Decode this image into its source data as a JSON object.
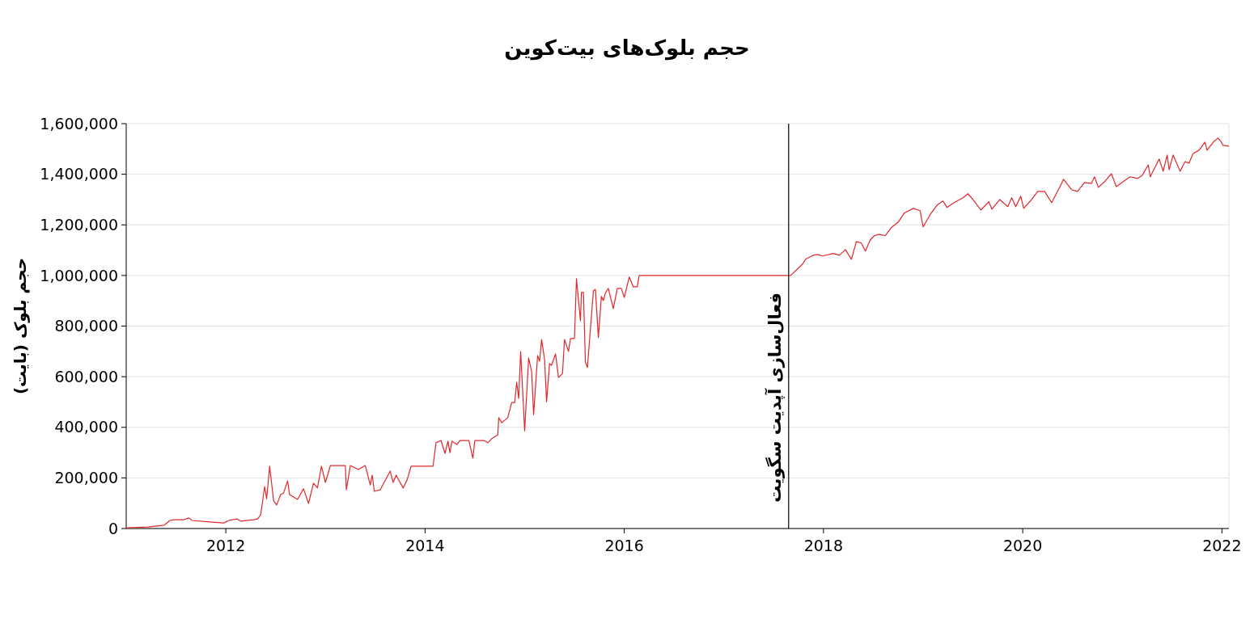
{
  "chart_data": {
    "type": "line",
    "title": "حجم بلوک‌های بیت‌کوین",
    "ylabel": "حجم بلوک (بایت)",
    "xlim": [
      2011,
      2022.07
    ],
    "xticks": [
      2012,
      2014,
      2016,
      2018,
      2020,
      2022
    ],
    "ylim": [
      0,
      1600000
    ],
    "yticks": [
      {
        "value": 0,
        "label": "0"
      },
      {
        "value": 200000,
        "label": "200,000"
      },
      {
        "value": 400000,
        "label": "400,000"
      },
      {
        "value": 600000,
        "label": "600,000"
      },
      {
        "value": 800000,
        "label": "800,000"
      },
      {
        "value": 1000000,
        "label": "1,000,000"
      },
      {
        "value": 1200000,
        "label": "1,200,000"
      },
      {
        "value": 1400000,
        "label": "1,400,000"
      },
      {
        "value": 1600000,
        "label": "1,600,000"
      }
    ],
    "grid": "y",
    "marker": "none",
    "line_style": "solid",
    "ref_lines": [
      {
        "axis": "x",
        "value": 2017.65,
        "label": "فعال‌سازی آپدیت سگویت",
        "color": "#000000"
      }
    ],
    "series": [
      {
        "color": "#e0282c",
        "x": [
          2011.0,
          2011.22,
          2011.38,
          2011.44,
          2011.48,
          2011.58,
          2011.63,
          2011.66,
          2011.84,
          2011.98,
          2012.03,
          2012.11,
          2012.15,
          2012.28,
          2012.32,
          2012.35,
          2012.39,
          2012.41,
          2012.44,
          2012.48,
          2012.51,
          2012.55,
          2012.58,
          2012.62,
          2012.64,
          2012.72,
          2012.78,
          2012.83,
          2012.88,
          2012.92,
          2012.96,
          2013.0,
          2013.05,
          2013.2,
          2013.21,
          2013.25,
          2013.33,
          2013.4,
          2013.45,
          2013.47,
          2013.49,
          2013.55,
          2013.65,
          2013.68,
          2013.71,
          2013.78,
          2013.82,
          2013.86,
          2014.08,
          2014.11,
          2014.16,
          2014.2,
          2014.23,
          2014.25,
          2014.27,
          2014.32,
          2014.35,
          2014.44,
          2014.48,
          2014.5,
          2014.59,
          2014.63,
          2014.67,
          2014.73,
          2014.74,
          2014.77,
          2014.83,
          2014.87,
          2014.9,
          2014.92,
          2014.94,
          2014.96,
          2015.0,
          2015.04,
          2015.07,
          2015.09,
          2015.13,
          2015.15,
          2015.17,
          2015.2,
          2015.22,
          2015.25,
          2015.27,
          2015.31,
          2015.34,
          2015.38,
          2015.4,
          2015.44,
          2015.46,
          2015.5,
          2015.52,
          2015.56,
          2015.57,
          2015.59,
          2015.61,
          2015.63,
          2015.69,
          2015.71,
          2015.74,
          2015.77,
          2015.79,
          2015.81,
          2015.84,
          2015.89,
          2015.93,
          2015.97,
          2016.0,
          2016.05,
          2016.09,
          2016.13,
          2016.15,
          2017.67,
          2017.79,
          2017.82,
          2017.9,
          2017.94,
          2017.99,
          2018.1,
          2018.16,
          2018.22,
          2018.28,
          2018.33,
          2018.38,
          2018.42,
          2018.47,
          2018.51,
          2018.56,
          2018.62,
          2018.68,
          2018.75,
          2018.81,
          2018.9,
          2018.97,
          2019.0,
          2019.07,
          2019.14,
          2019.2,
          2019.24,
          2019.31,
          2019.4,
          2019.45,
          2019.5,
          2019.58,
          2019.66,
          2019.69,
          2019.77,
          2019.85,
          2019.89,
          2019.93,
          2019.98,
          2020.01,
          2020.09,
          2020.15,
          2020.22,
          2020.29,
          2020.37,
          2020.41,
          2020.49,
          2020.55,
          2020.62,
          2020.69,
          2020.72,
          2020.76,
          2020.82,
          2020.89,
          2020.94,
          2021.02,
          2021.08,
          2021.15,
          2021.2,
          2021.26,
          2021.28,
          2021.37,
          2021.41,
          2021.45,
          2021.47,
          2021.51,
          2021.58,
          2021.63,
          2021.67,
          2021.71,
          2021.77,
          2021.83,
          2021.85,
          2021.92,
          2021.96,
          2021.99,
          2022.01,
          2022.07
        ],
        "values": [
          3000,
          6000,
          13000,
          32000,
          35000,
          35000,
          42000,
          32000,
          26000,
          22000,
          32000,
          38000,
          29000,
          35000,
          38000,
          54000,
          166000,
          118000,
          246000,
          109000,
          93000,
          134000,
          140000,
          188000,
          134000,
          115000,
          157000,
          99000,
          179000,
          160000,
          246000,
          182000,
          249000,
          249000,
          153000,
          249000,
          233000,
          249000,
          172000,
          211000,
          147000,
          153000,
          227000,
          182000,
          211000,
          160000,
          192000,
          246000,
          246000,
          339000,
          348000,
          297000,
          345000,
          300000,
          345000,
          332000,
          348000,
          348000,
          278000,
          348000,
          348000,
          339000,
          355000,
          370000,
          438000,
          418000,
          438000,
          498000,
          498000,
          578000,
          514000,
          700000,
          386000,
          674000,
          620000,
          450000,
          684000,
          661000,
          747000,
          668000,
          501000,
          652000,
          645000,
          690000,
          597000,
          613000,
          747000,
          700000,
          751000,
          751000,
          987000,
          821000,
          933000,
          933000,
          658000,
          636000,
          939000,
          945000,
          754000,
          917000,
          901000,
          930000,
          949000,
          869000,
          949000,
          949000,
          913000,
          994000,
          955000,
          955000,
          1000000,
          1000000,
          1045000,
          1064000,
          1080000,
          1083000,
          1077000,
          1087000,
          1080000,
          1102000,
          1064000,
          1134000,
          1128000,
          1096000,
          1141000,
          1157000,
          1163000,
          1157000,
          1189000,
          1211000,
          1246000,
          1265000,
          1256000,
          1192000,
          1240000,
          1278000,
          1294000,
          1269000,
          1288000,
          1307000,
          1323000,
          1300000,
          1259000,
          1291000,
          1262000,
          1300000,
          1272000,
          1307000,
          1272000,
          1313000,
          1265000,
          1300000,
          1332000,
          1332000,
          1288000,
          1348000,
          1380000,
          1339000,
          1332000,
          1367000,
          1364000,
          1390000,
          1348000,
          1370000,
          1402000,
          1351000,
          1374000,
          1390000,
          1383000,
          1396000,
          1437000,
          1390000,
          1460000,
          1412000,
          1476000,
          1418000,
          1476000,
          1412000,
          1450000,
          1444000,
          1482000,
          1495000,
          1527000,
          1495000,
          1530000,
          1543000,
          1530000,
          1514000,
          1511000
        ]
      }
    ]
  }
}
